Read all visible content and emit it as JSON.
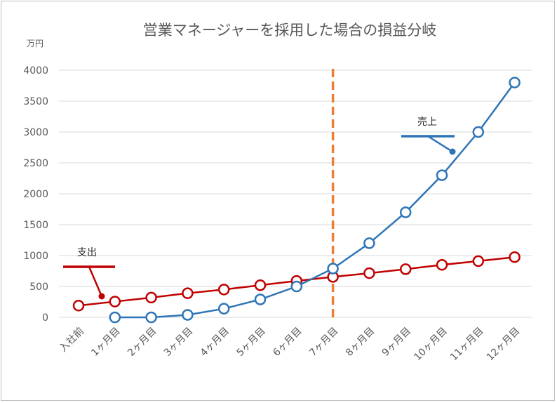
{
  "chart_data": {
    "type": "line",
    "title": "営業マネージャーを採用した場合の損益分岐",
    "yunit": "万円",
    "ylim": [
      0,
      4000
    ],
    "yticks": [
      0,
      500,
      1000,
      1500,
      2000,
      2500,
      3000,
      3500,
      4000
    ],
    "categories": [
      "入社前",
      "1ヶ月目",
      "2ヶ月目",
      "3ヶ月目",
      "4ヶ月目",
      "5ヶ月目",
      "6ヶ月目",
      "7ヶ月目",
      "8ヶ月目",
      "9ヶ月目",
      "10ヶ月目",
      "11ヶ月目",
      "12ヶ月目"
    ],
    "series": [
      {
        "name": "支出",
        "color": "#c00000",
        "values": [
          190,
          255,
          320,
          390,
          450,
          520,
          590,
          655,
          715,
          780,
          850,
          910,
          975
        ]
      },
      {
        "name": "売上",
        "color": "#2e75b6",
        "values": [
          null,
          0,
          0,
          40,
          140,
          290,
          500,
          790,
          1200,
          1700,
          2300,
          3000,
          3800
        ]
      }
    ],
    "breakeven": {
      "category_index": 7,
      "color": "#ed7d31"
    },
    "grid": true,
    "legend": "callouts"
  }
}
